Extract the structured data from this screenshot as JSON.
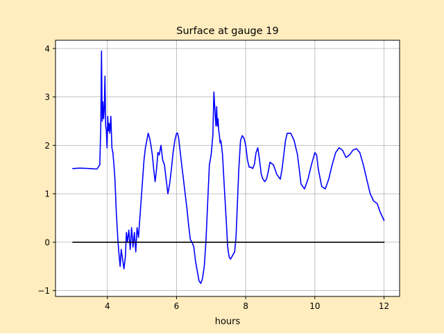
{
  "colors": {
    "figure_background": "#ffedbf",
    "plot_background": "#ffffff",
    "series_line": "#0000ff",
    "zero_line": "#000000",
    "grid": "#b0b0b0",
    "axis": "#000000"
  },
  "chart_data": {
    "type": "line",
    "title": "Surface at gauge 19",
    "xlabel": "hours",
    "ylabel": "",
    "xlim": [
      2.5,
      12.45
    ],
    "ylim": [
      -1.12,
      4.17
    ],
    "xticks": [
      4,
      6,
      8,
      10,
      12
    ],
    "xtick_labels": [
      "4",
      "6",
      "8",
      "10",
      "12"
    ],
    "yticks": [
      -1,
      0,
      1,
      2,
      3,
      4
    ],
    "ytick_labels": [
      "−1",
      "0",
      "1",
      "2",
      "3",
      "4"
    ],
    "grid": true,
    "legend": "none",
    "series": [
      {
        "color": "#0000ff",
        "x": [
          3.0,
          3.2,
          3.5,
          3.7,
          3.78,
          3.81,
          3.83,
          3.85,
          3.87,
          3.89,
          3.91,
          3.93,
          3.95,
          3.97,
          3.99,
          4.01,
          4.03,
          4.05,
          4.07,
          4.1,
          4.13,
          4.16,
          4.19,
          4.22,
          4.26,
          4.3,
          4.33,
          4.37,
          4.4,
          4.44,
          4.48,
          4.52,
          4.55,
          4.58,
          4.62,
          4.66,
          4.7,
          4.74,
          4.78,
          4.82,
          4.86,
          4.9,
          4.94,
          4.98,
          5.02,
          5.06,
          5.1,
          5.14,
          5.18,
          5.22,
          5.26,
          5.3,
          5.34,
          5.38,
          5.42,
          5.46,
          5.5,
          5.55,
          5.6,
          5.65,
          5.7,
          5.75,
          5.8,
          5.85,
          5.9,
          5.95,
          6.0,
          6.03,
          6.06,
          6.1,
          6.15,
          6.2,
          6.25,
          6.3,
          6.35,
          6.4,
          6.45,
          6.5,
          6.55,
          6.6,
          6.65,
          6.7,
          6.75,
          6.8,
          6.85,
          6.9,
          6.95,
          7.0,
          7.05,
          7.08,
          7.1,
          7.12,
          7.14,
          7.16,
          7.18,
          7.2,
          7.22,
          7.24,
          7.26,
          7.28,
          7.3,
          7.33,
          7.36,
          7.4,
          7.44,
          7.48,
          7.52,
          7.56,
          7.6,
          7.64,
          7.68,
          7.72,
          7.76,
          7.8,
          7.85,
          7.9,
          7.95,
          8.0,
          8.05,
          8.1,
          8.15,
          8.2,
          8.25,
          8.3,
          8.35,
          8.4,
          8.45,
          8.5,
          8.55,
          8.6,
          8.65,
          8.7,
          8.8,
          8.9,
          9.0,
          9.05,
          9.1,
          9.15,
          9.2,
          9.3,
          9.4,
          9.5,
          9.55,
          9.6,
          9.7,
          9.8,
          9.9,
          10.0,
          10.05,
          10.1,
          10.2,
          10.3,
          10.4,
          10.5,
          10.6,
          10.7,
          10.8,
          10.9,
          11.0,
          11.05,
          11.1,
          11.2,
          11.3,
          11.4,
          11.5,
          11.6,
          11.7,
          11.8,
          11.9,
          12.0
        ],
        "y": [
          1.52,
          1.53,
          1.52,
          1.51,
          1.6,
          2.4,
          3.95,
          2.5,
          2.9,
          2.55,
          2.75,
          3.43,
          2.4,
          2.3,
          1.95,
          2.6,
          2.3,
          2.45,
          2.25,
          2.6,
          1.95,
          1.85,
          1.6,
          1.3,
          0.6,
          0.1,
          -0.2,
          -0.5,
          -0.15,
          -0.35,
          -0.55,
          -0.3,
          0.2,
          0.0,
          0.25,
          -0.15,
          0.3,
          -0.1,
          0.2,
          -0.2,
          0.3,
          0.1,
          0.5,
          0.9,
          1.3,
          1.7,
          1.95,
          2.1,
          2.25,
          2.15,
          2.0,
          1.8,
          1.5,
          1.25,
          1.5,
          1.85,
          1.8,
          2.0,
          1.7,
          1.6,
          1.3,
          1.0,
          1.2,
          1.5,
          1.85,
          2.1,
          2.25,
          2.25,
          2.15,
          1.9,
          1.6,
          1.3,
          1.0,
          0.7,
          0.35,
          0.05,
          0.0,
          -0.1,
          -0.4,
          -0.6,
          -0.8,
          -0.85,
          -0.75,
          -0.5,
          0.0,
          0.8,
          1.6,
          1.8,
          2.2,
          3.1,
          2.85,
          2.6,
          2.4,
          2.8,
          2.4,
          2.55,
          2.3,
          2.2,
          2.05,
          2.1,
          2.0,
          1.8,
          1.4,
          0.9,
          0.4,
          -0.1,
          -0.3,
          -0.35,
          -0.3,
          -0.25,
          -0.2,
          0.1,
          0.8,
          1.5,
          2.1,
          2.2,
          2.15,
          2.0,
          1.7,
          1.55,
          1.55,
          1.52,
          1.6,
          1.85,
          1.95,
          1.7,
          1.4,
          1.3,
          1.25,
          1.3,
          1.45,
          1.65,
          1.6,
          1.4,
          1.3,
          1.5,
          1.8,
          2.1,
          2.25,
          2.25,
          2.1,
          1.8,
          1.5,
          1.2,
          1.1,
          1.3,
          1.6,
          1.85,
          1.8,
          1.5,
          1.15,
          1.1,
          1.3,
          1.6,
          1.85,
          1.95,
          1.9,
          1.75,
          1.8,
          1.85,
          1.9,
          1.93,
          1.85,
          1.6,
          1.3,
          1.0,
          0.85,
          0.8,
          0.6,
          0.45
        ]
      },
      {
        "color": "#000000",
        "x": [
          3.0,
          12.0
        ],
        "y": [
          0.0,
          0.0
        ]
      }
    ]
  }
}
